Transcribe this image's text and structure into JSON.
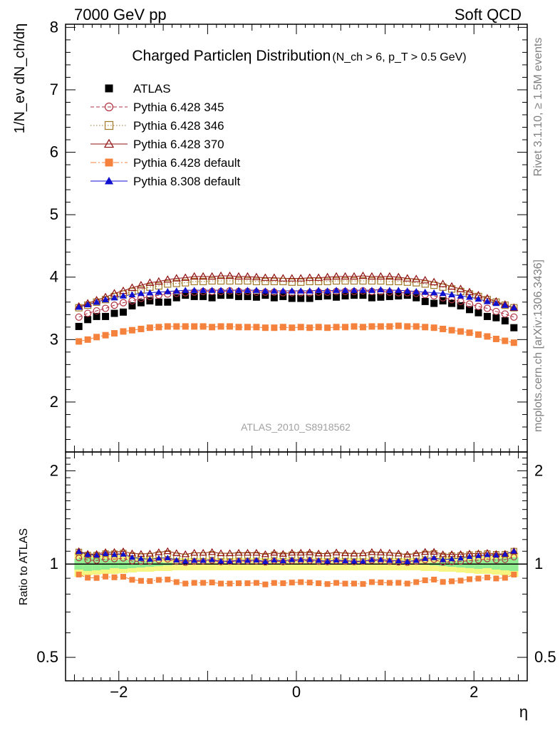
{
  "header": {
    "left": "7000 GeV pp",
    "right": "Soft QCD"
  },
  "side_labels": {
    "rivet": "Rivet 3.1.10, ≥ 1.5M events",
    "mcplots": "mcplots.cern.ch [arXiv:1306.3436]"
  },
  "chart_data": [
    {
      "type": "scatter",
      "title": "Charged Particle",
      "title_eta": "η",
      "title_rest": " Distribution",
      "title_sub": "(N_ch > 6, p_T > 0.5 GeV)",
      "ylabel": "1/N_ev dN_ch/dη",
      "watermark": "ATLAS_2010_S8918562",
      "xlim": [
        -2.6,
        2.6
      ],
      "ylim": [
        1.2,
        8.05
      ],
      "yticks": [
        "2",
        "3",
        "4",
        "5",
        "6",
        "7",
        "8"
      ],
      "legend_position": "top-left",
      "eta": [
        -2.45,
        -2.35,
        -2.25,
        -2.15,
        -2.05,
        -1.95,
        -1.85,
        -1.75,
        -1.65,
        -1.55,
        -1.45,
        -1.35,
        -1.25,
        -1.15,
        -1.05,
        -0.95,
        -0.85,
        -0.75,
        -0.65,
        -0.55,
        -0.45,
        -0.35,
        -0.25,
        -0.15,
        -0.05,
        0.05,
        0.15,
        0.25,
        0.35,
        0.45,
        0.55,
        0.65,
        0.75,
        0.85,
        0.95,
        1.05,
        1.15,
        1.25,
        1.35,
        1.45,
        1.55,
        1.65,
        1.75,
        1.85,
        1.95,
        2.05,
        2.15,
        2.25,
        2.35,
        2.45
      ],
      "series": [
        {
          "name": "ATLAS",
          "color": "#000000",
          "marker": "square-filled",
          "line": "none",
          "values": [
            3.21,
            3.32,
            3.37,
            3.37,
            3.42,
            3.44,
            3.54,
            3.59,
            3.62,
            3.6,
            3.6,
            3.67,
            3.71,
            3.69,
            3.69,
            3.67,
            3.71,
            3.71,
            3.69,
            3.69,
            3.68,
            3.71,
            3.67,
            3.69,
            3.66,
            3.66,
            3.66,
            3.69,
            3.7,
            3.68,
            3.7,
            3.71,
            3.71,
            3.67,
            3.68,
            3.69,
            3.7,
            3.71,
            3.67,
            3.61,
            3.58,
            3.62,
            3.58,
            3.54,
            3.48,
            3.43,
            3.37,
            3.35,
            3.3,
            3.19
          ]
        },
        {
          "name": "Pythia 6.428 345",
          "color": "#b03040",
          "marker": "circle-open",
          "line": "dashed",
          "values": [
            3.36,
            3.42,
            3.46,
            3.5,
            3.55,
            3.59,
            3.62,
            3.66,
            3.69,
            3.71,
            3.73,
            3.74,
            3.75,
            3.76,
            3.77,
            3.77,
            3.77,
            3.78,
            3.77,
            3.77,
            3.76,
            3.76,
            3.76,
            3.75,
            3.75,
            3.75,
            3.75,
            3.76,
            3.76,
            3.77,
            3.77,
            3.77,
            3.78,
            3.77,
            3.77,
            3.76,
            3.75,
            3.75,
            3.74,
            3.72,
            3.7,
            3.67,
            3.64,
            3.61,
            3.57,
            3.53,
            3.5,
            3.45,
            3.41,
            3.36
          ]
        },
        {
          "name": "Pythia 6.428 346",
          "color": "#a07828",
          "marker": "square-open",
          "line": "dotted",
          "values": [
            3.51,
            3.55,
            3.6,
            3.64,
            3.69,
            3.73,
            3.77,
            3.8,
            3.84,
            3.86,
            3.89,
            3.9,
            3.91,
            3.93,
            3.93,
            3.94,
            3.94,
            3.94,
            3.94,
            3.94,
            3.93,
            3.93,
            3.93,
            3.93,
            3.92,
            3.92,
            3.93,
            3.93,
            3.93,
            3.94,
            3.94,
            3.94,
            3.94,
            3.94,
            3.94,
            3.93,
            3.93,
            3.92,
            3.91,
            3.89,
            3.87,
            3.84,
            3.81,
            3.77,
            3.73,
            3.69,
            3.64,
            3.6,
            3.55,
            3.51
          ]
        },
        {
          "name": "Pythia 6.428 370",
          "color": "#901010",
          "marker": "triangle-open",
          "line": "solid",
          "values": [
            3.53,
            3.58,
            3.63,
            3.68,
            3.74,
            3.78,
            3.83,
            3.87,
            3.91,
            3.93,
            3.96,
            3.98,
            3.99,
            4.01,
            4.01,
            4.01,
            4.02,
            4.02,
            4.01,
            4.01,
            4.0,
            3.99,
            3.99,
            3.98,
            3.98,
            3.98,
            3.99,
            3.99,
            4.0,
            4.01,
            4.01,
            4.01,
            4.02,
            4.01,
            4.01,
            4.01,
            4.0,
            3.98,
            3.97,
            3.95,
            3.92,
            3.89,
            3.85,
            3.81,
            3.76,
            3.71,
            3.66,
            3.61,
            3.56,
            3.51
          ]
        },
        {
          "name": "Pythia 6.428 default",
          "color": "#f4813c",
          "marker": "square-filled",
          "line": "dashdot",
          "values": [
            2.97,
            3.0,
            3.04,
            3.07,
            3.1,
            3.13,
            3.15,
            3.17,
            3.19,
            3.2,
            3.21,
            3.21,
            3.21,
            3.21,
            3.21,
            3.2,
            3.21,
            3.21,
            3.2,
            3.2,
            3.2,
            3.19,
            3.19,
            3.2,
            3.19,
            3.2,
            3.19,
            3.2,
            3.19,
            3.2,
            3.2,
            3.21,
            3.2,
            3.21,
            3.21,
            3.21,
            3.22,
            3.21,
            3.21,
            3.2,
            3.19,
            3.17,
            3.15,
            3.13,
            3.11,
            3.08,
            3.05,
            3.01,
            2.98,
            2.95
          ]
        },
        {
          "name": "Pythia 8.308 default",
          "color": "#1010d0",
          "marker": "triangle-filled",
          "line": "solid",
          "values": [
            3.52,
            3.56,
            3.6,
            3.64,
            3.67,
            3.7,
            3.72,
            3.74,
            3.75,
            3.76,
            3.77,
            3.78,
            3.79,
            3.79,
            3.79,
            3.79,
            3.79,
            3.79,
            3.79,
            3.79,
            3.79,
            3.78,
            3.78,
            3.78,
            3.78,
            3.78,
            3.78,
            3.79,
            3.78,
            3.79,
            3.79,
            3.79,
            3.79,
            3.79,
            3.8,
            3.79,
            3.79,
            3.78,
            3.77,
            3.76,
            3.75,
            3.74,
            3.72,
            3.7,
            3.68,
            3.65,
            3.61,
            3.58,
            3.55,
            3.51
          ]
        }
      ]
    },
    {
      "type": "scatter",
      "ylabel": "Ratio to ATLAS",
      "xlabel": "η",
      "xlim": [
        -2.6,
        2.6
      ],
      "ylim": [
        0.42,
        2.3
      ],
      "yscale": "log",
      "yticks": [
        "0.5",
        "1",
        "2"
      ],
      "xticks": [
        "−2",
        "0",
        "2"
      ],
      "reference_line": 1.0,
      "band_colors": {
        "stat": "#90ee90",
        "total": "#f5f580"
      },
      "band_stat_half_width": [
        0.04,
        0.05,
        0.045,
        0.04,
        0.03,
        0.035,
        0.03,
        0.025,
        0.02,
        0.015,
        0.01,
        0.005,
        0.004,
        0.004,
        0.004,
        0.004,
        0.004,
        0.004,
        0.004,
        0.004,
        0.004,
        0.004,
        0.004,
        0.004,
        0.004,
        0.004,
        0.004,
        0.004,
        0.004,
        0.004,
        0.004,
        0.004,
        0.004,
        0.004,
        0.004,
        0.004,
        0.004,
        0.004,
        0.004,
        0.005,
        0.01,
        0.015,
        0.02,
        0.025,
        0.03,
        0.035,
        0.03,
        0.04,
        0.045,
        0.05
      ],
      "band_total_half_width": [
        0.09,
        0.08,
        0.075,
        0.07,
        0.07,
        0.065,
        0.06,
        0.055,
        0.055,
        0.05,
        0.05,
        0.045,
        0.045,
        0.045,
        0.045,
        0.045,
        0.045,
        0.045,
        0.045,
        0.045,
        0.045,
        0.045,
        0.045,
        0.045,
        0.045,
        0.045,
        0.045,
        0.045,
        0.045,
        0.045,
        0.045,
        0.045,
        0.045,
        0.045,
        0.045,
        0.045,
        0.045,
        0.045,
        0.045,
        0.05,
        0.05,
        0.055,
        0.055,
        0.06,
        0.065,
        0.07,
        0.07,
        0.075,
        0.08,
        0.09
      ]
    }
  ]
}
